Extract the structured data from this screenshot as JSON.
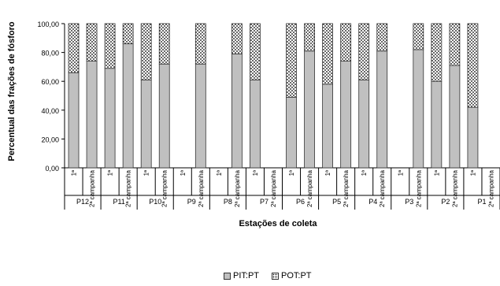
{
  "chart_data": {
    "type": "bar",
    "stacked": true,
    "ylabel": "Percentual das frações de fósforo",
    "xlabel": "Estações de coleta",
    "ylim": [
      0,
      100
    ],
    "yticks": [
      "0,00",
      "20,00",
      "40,00",
      "60,00",
      "80,00",
      "100,00"
    ],
    "groups": [
      "P12",
      "P11",
      "P10",
      "P9",
      "P8",
      "P7",
      "P6",
      "P5",
      "P4",
      "P3",
      "P2",
      "P1"
    ],
    "categories": [
      "1ª",
      "2ª campanha",
      "1ª",
      "2ª campanha",
      "1ª",
      "2ª campanha",
      "1ª",
      "2ª campanha",
      "1ª",
      "2ª campanha",
      "1ª",
      "2ª campanha",
      "1ª",
      "2ª campanha",
      "1ª",
      "2ª campanha",
      "1ª",
      "2ª campanha",
      "1ª",
      "2ª campanha",
      "1ª",
      "2ª campanha",
      "1ª",
      "2ª campanha"
    ],
    "series": [
      {
        "name": "PIT:PT",
        "values": [
          66,
          74,
          69,
          86,
          61,
          72,
          null,
          72,
          null,
          79,
          61,
          null,
          49,
          81,
          58,
          74,
          61,
          81,
          null,
          82,
          60,
          71,
          42,
          null
        ]
      },
      {
        "name": "POT:PT",
        "values": [
          34,
          26,
          31,
          14,
          39,
          28,
          null,
          28,
          null,
          21,
          39,
          null,
          51,
          19,
          42,
          26,
          39,
          19,
          null,
          18,
          40,
          29,
          58,
          null
        ]
      }
    ],
    "colors": {
      "PIT:PT": "#c0c0c0",
      "POT:PT": "#ffffff"
    },
    "grid": false,
    "legend": "bottom"
  }
}
